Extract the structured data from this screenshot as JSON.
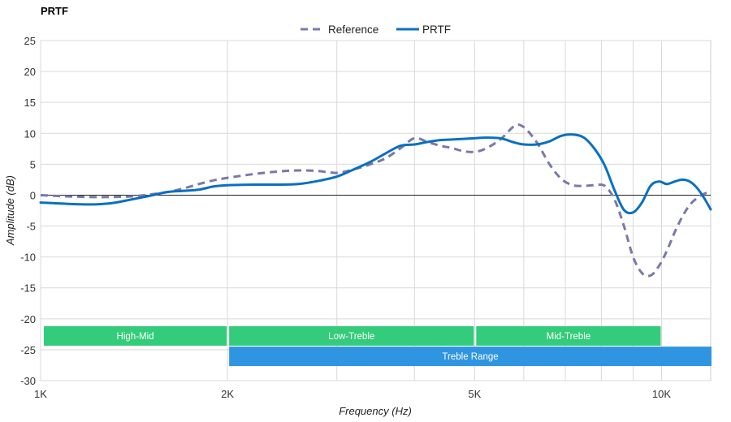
{
  "chart_data": {
    "type": "line",
    "title": "PRTF",
    "xlabel": "Frequency (Hz)",
    "ylabel": "Amplitude (dB)",
    "xscale": "log",
    "xlim": [
      1000,
      12000
    ],
    "ylim": [
      -30,
      25
    ],
    "grid": true,
    "legend_position": "top-center",
    "x_ticks": [
      {
        "value": 1000,
        "label": "1K"
      },
      {
        "value": 2000,
        "label": "2K"
      },
      {
        "value": 5000,
        "label": "5K"
      },
      {
        "value": 10000,
        "label": "10K"
      }
    ],
    "x_minor_gridlines": [
      3000,
      4000,
      6000,
      7000,
      8000,
      9000
    ],
    "y_ticks": [
      25,
      20,
      15,
      10,
      5,
      0,
      -5,
      -10,
      -15,
      -20,
      -25,
      -30
    ],
    "zero_line": true,
    "series": [
      {
        "name": "Reference",
        "style": "dashed",
        "color": "#7a79a8",
        "points": [
          [
            1000,
            0
          ],
          [
            1100,
            -0.2
          ],
          [
            1200,
            -0.3
          ],
          [
            1300,
            -0.3
          ],
          [
            1400,
            -0.2
          ],
          [
            1500,
            0.1
          ],
          [
            1600,
            0.5
          ],
          [
            1700,
            1.1
          ],
          [
            1800,
            1.8
          ],
          [
            1900,
            2.4
          ],
          [
            2000,
            2.8
          ],
          [
            2200,
            3.4
          ],
          [
            2400,
            3.8
          ],
          [
            2600,
            4.0
          ],
          [
            2800,
            3.9
          ],
          [
            3000,
            3.6
          ],
          [
            3200,
            4.2
          ],
          [
            3400,
            5.0
          ],
          [
            3600,
            6.0
          ],
          [
            3800,
            7.6
          ],
          [
            4000,
            9.2
          ],
          [
            4200,
            8.6
          ],
          [
            4400,
            8.0
          ],
          [
            4600,
            7.6
          ],
          [
            4800,
            7.1
          ],
          [
            5000,
            7.0
          ],
          [
            5200,
            7.5
          ],
          [
            5500,
            9.0
          ],
          [
            5800,
            11.2
          ],
          [
            6000,
            11.0
          ],
          [
            6300,
            8.5
          ],
          [
            6600,
            5.0
          ],
          [
            6900,
            2.6
          ],
          [
            7200,
            1.6
          ],
          [
            7500,
            1.5
          ],
          [
            7800,
            1.6
          ],
          [
            8100,
            1.5
          ],
          [
            8400,
            -0.7
          ],
          [
            8700,
            -5.0
          ],
          [
            9000,
            -10.0
          ],
          [
            9300,
            -12.6
          ],
          [
            9600,
            -13.0
          ],
          [
            9900,
            -11.5
          ],
          [
            10200,
            -9.0
          ],
          [
            10500,
            -6.0
          ],
          [
            10800,
            -3.5
          ],
          [
            11100,
            -1.6
          ],
          [
            11400,
            -0.5
          ],
          [
            11700,
            0.2
          ],
          [
            12000,
            0.6
          ]
        ]
      },
      {
        "name": "PRTF",
        "style": "solid",
        "color": "#0a6fc2",
        "points": [
          [
            1000,
            -1.2
          ],
          [
            1100,
            -1.4
          ],
          [
            1200,
            -1.5
          ],
          [
            1300,
            -1.3
          ],
          [
            1400,
            -0.7
          ],
          [
            1500,
            -0.1
          ],
          [
            1600,
            0.5
          ],
          [
            1700,
            0.7
          ],
          [
            1800,
            0.9
          ],
          [
            1900,
            1.4
          ],
          [
            2000,
            1.6
          ],
          [
            2200,
            1.7
          ],
          [
            2400,
            1.7
          ],
          [
            2600,
            1.8
          ],
          [
            2800,
            2.3
          ],
          [
            3000,
            3.0
          ],
          [
            3200,
            4.2
          ],
          [
            3400,
            5.4
          ],
          [
            3600,
            6.8
          ],
          [
            3800,
            8.0
          ],
          [
            4000,
            8.2
          ],
          [
            4200,
            8.6
          ],
          [
            4400,
            8.9
          ],
          [
            4600,
            9.0
          ],
          [
            4800,
            9.1
          ],
          [
            5000,
            9.2
          ],
          [
            5200,
            9.3
          ],
          [
            5500,
            9.2
          ],
          [
            5800,
            8.5
          ],
          [
            6000,
            8.2
          ],
          [
            6300,
            8.2
          ],
          [
            6600,
            8.7
          ],
          [
            6900,
            9.6
          ],
          [
            7200,
            9.8
          ],
          [
            7500,
            9.3
          ],
          [
            7800,
            7.5
          ],
          [
            8100,
            4.8
          ],
          [
            8400,
            0.8
          ],
          [
            8700,
            -2.4
          ],
          [
            9000,
            -2.8
          ],
          [
            9300,
            -1.2
          ],
          [
            9600,
            1.5
          ],
          [
            9900,
            2.2
          ],
          [
            10200,
            1.8
          ],
          [
            10500,
            2.2
          ],
          [
            10800,
            2.5
          ],
          [
            11100,
            2.2
          ],
          [
            11400,
            1.2
          ],
          [
            11700,
            -0.4
          ],
          [
            12000,
            -2.3
          ]
        ]
      }
    ],
    "annotations": [
      {
        "label": "High-Mid",
        "x_from": 1000,
        "x_to": 2000,
        "row": 0,
        "color": "#33cc7a"
      },
      {
        "label": "Low-Treble",
        "x_from": 2000,
        "x_to": 5000,
        "row": 0,
        "color": "#33cc7a"
      },
      {
        "label": "Mid-Treble",
        "x_from": 5000,
        "x_to": 10000,
        "row": 0,
        "color": "#33cc7a"
      },
      {
        "label": "Treble Range",
        "x_from": 2000,
        "x_to": 12000,
        "row": 1,
        "color": "#2f95e0"
      }
    ]
  }
}
